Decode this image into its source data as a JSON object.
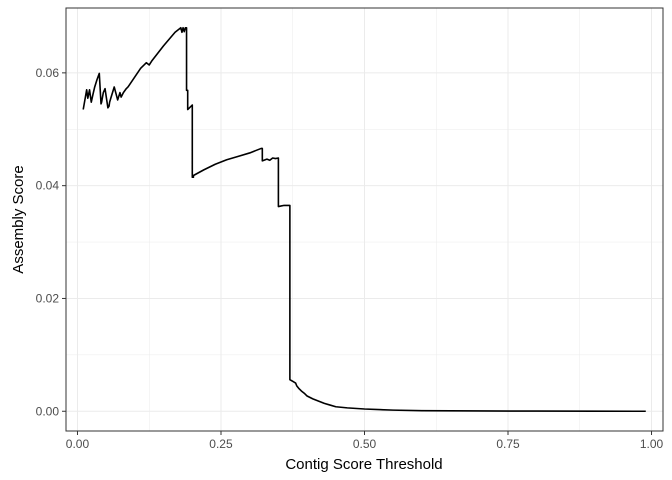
{
  "chart_data": {
    "type": "line",
    "title": "",
    "xlabel": "Contig Score Threshold",
    "ylabel": "Assembly Score",
    "xlim": [
      -0.02,
      1.02
    ],
    "ylim": [
      -0.0035,
      0.0715
    ],
    "x_ticks": [
      0.0,
      0.25,
      0.5,
      0.75,
      1.0
    ],
    "x_tick_labels": [
      "0.00",
      "0.25",
      "0.50",
      "0.75",
      "1.00"
    ],
    "y_ticks": [
      0.0,
      0.02,
      0.04,
      0.06
    ],
    "y_tick_labels": [
      "0.00",
      "0.02",
      "0.04",
      "0.06"
    ],
    "grid": true,
    "line_color": "#000000",
    "panel_border_color": "#333333",
    "grid_color": "#ebebeb",
    "series": [
      {
        "x": [
          0.01,
          0.016,
          0.018,
          0.021,
          0.024,
          0.027,
          0.03,
          0.034,
          0.038,
          0.041,
          0.042,
          0.045,
          0.048,
          0.053,
          0.055,
          0.056,
          0.058,
          0.064,
          0.07,
          0.074,
          0.076,
          0.08,
          0.085,
          0.088,
          0.09,
          0.1,
          0.11,
          0.12,
          0.125,
          0.13,
          0.14,
          0.15,
          0.16,
          0.17,
          0.18,
          0.182,
          0.184,
          0.186,
          0.188,
          0.19,
          0.19,
          0.192,
          0.192,
          0.2,
          0.2,
          0.202,
          0.202,
          0.22,
          0.24,
          0.26,
          0.28,
          0.3,
          0.31,
          0.32,
          0.322,
          0.322,
          0.33,
          0.335,
          0.34,
          0.345,
          0.35,
          0.35,
          0.355,
          0.36,
          0.365,
          0.37,
          0.37,
          0.375,
          0.38,
          0.382,
          0.386,
          0.39,
          0.395,
          0.4,
          0.41,
          0.42,
          0.43,
          0.44,
          0.45,
          0.47,
          0.5,
          0.55,
          0.6,
          0.7,
          0.8,
          0.9,
          0.99
        ],
        "y": [
          0.0535,
          0.057,
          0.0555,
          0.057,
          0.0548,
          0.0562,
          0.0575,
          0.0588,
          0.0599,
          0.0545,
          0.0548,
          0.0565,
          0.0572,
          0.0538,
          0.0541,
          0.0548,
          0.0555,
          0.0575,
          0.0552,
          0.0565,
          0.0557,
          0.0565,
          0.0572,
          0.0575,
          0.0578,
          0.0593,
          0.0608,
          0.0618,
          0.0614,
          0.0622,
          0.0635,
          0.0648,
          0.066,
          0.0672,
          0.068,
          0.0672,
          0.068,
          0.0673,
          0.068,
          0.068,
          0.0569,
          0.0569,
          0.0535,
          0.0543,
          0.0415,
          0.0415,
          0.0418,
          0.0428,
          0.0438,
          0.0446,
          0.0452,
          0.0458,
          0.0462,
          0.0466,
          0.0466,
          0.0444,
          0.0447,
          0.0445,
          0.0449,
          0.0448,
          0.0449,
          0.0363,
          0.0364,
          0.0365,
          0.0365,
          0.0365,
          0.0056,
          0.0053,
          0.005,
          0.0045,
          0.004,
          0.0036,
          0.0032,
          0.0027,
          0.0022,
          0.0018,
          0.0014,
          0.0011,
          0.0008,
          0.0006,
          0.0004,
          0.0002,
          0.0001,
          5e-05,
          3e-05,
          1e-05,
          0.0
        ]
      }
    ]
  }
}
